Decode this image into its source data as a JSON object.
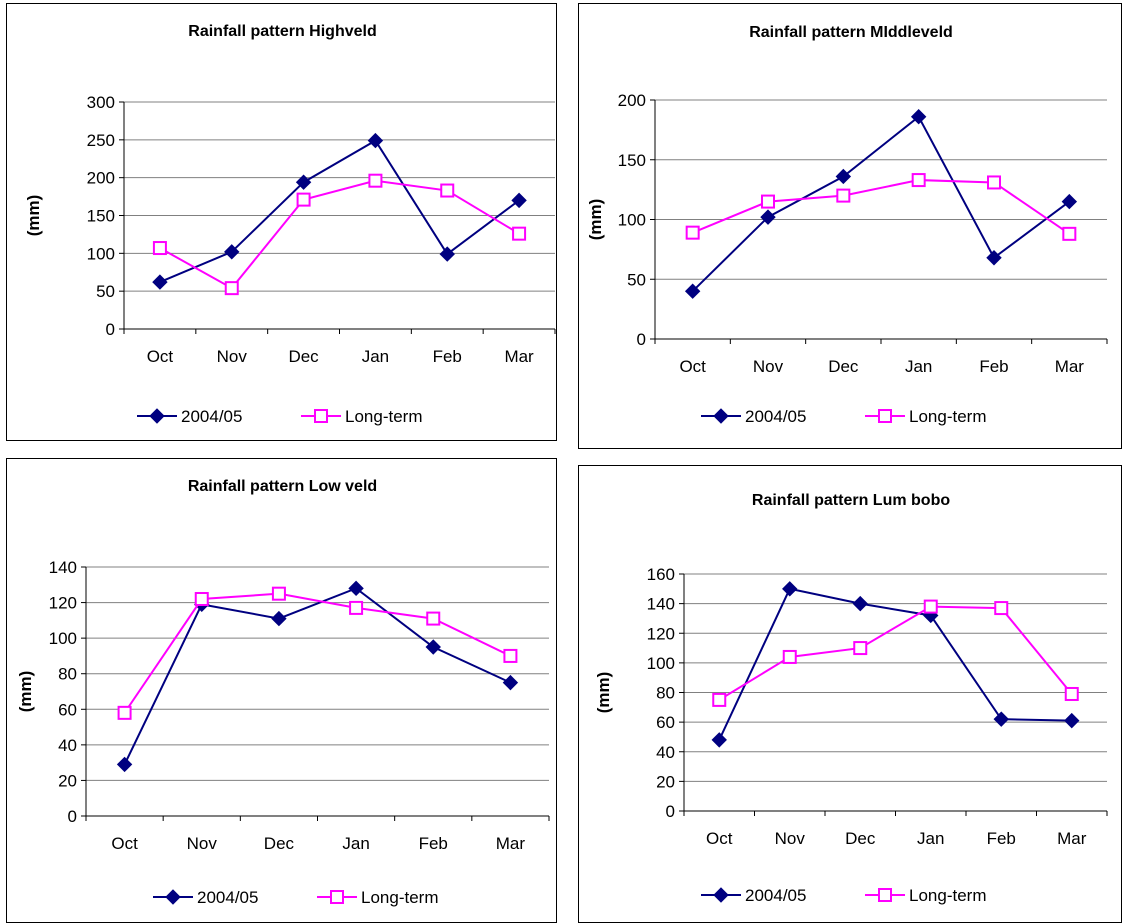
{
  "colors": {
    "series_2004_05": "#000080",
    "series_long_term": "#ff00ff",
    "grid": "#808080",
    "axis": "#000000"
  },
  "chart_data": [
    {
      "type": "line",
      "title": "Rainfall pattern Highveld",
      "ylabel": "(mm)",
      "xlabel": "",
      "categories": [
        "Oct",
        "Nov",
        "Dec",
        "Jan",
        "Feb",
        "Mar"
      ],
      "ylim": [
        0,
        300
      ],
      "yticks": [
        0,
        50,
        100,
        150,
        200,
        250,
        300
      ],
      "grid": true,
      "legend": "bottom",
      "series": [
        {
          "name": "2004/05",
          "values": [
            62,
            102,
            194,
            249,
            99,
            170
          ],
          "marker": "diamond"
        },
        {
          "name": "Long-term",
          "values": [
            107,
            54,
            171,
            196,
            183,
            126
          ],
          "marker": "square"
        }
      ]
    },
    {
      "type": "line",
      "title": "Rainfall pattern MIddleveld",
      "ylabel": "(mm)",
      "xlabel": "",
      "categories": [
        "Oct",
        "Nov",
        "Dec",
        "Jan",
        "Feb",
        "Mar"
      ],
      "ylim": [
        0,
        200
      ],
      "yticks": [
        0,
        50,
        100,
        150,
        200
      ],
      "grid": true,
      "legend": "bottom",
      "series": [
        {
          "name": "2004/05",
          "values": [
            40,
            102,
            136,
            186,
            68,
            115
          ],
          "marker": "diamond"
        },
        {
          "name": "Long-term",
          "values": [
            89,
            115,
            120,
            133,
            131,
            88
          ],
          "marker": "square"
        }
      ]
    },
    {
      "type": "line",
      "title": "Rainfall pattern Low veld",
      "ylabel": "(mm)",
      "xlabel": "",
      "categories": [
        "Oct",
        "Nov",
        "Dec",
        "Jan",
        "Feb",
        "Mar"
      ],
      "ylim": [
        0,
        140
      ],
      "yticks": [
        0,
        20,
        40,
        60,
        80,
        100,
        120,
        140
      ],
      "grid": true,
      "legend": "bottom",
      "series": [
        {
          "name": "2004/05",
          "values": [
            29,
            119,
            111,
            128,
            95,
            75
          ],
          "marker": "diamond"
        },
        {
          "name": "Long-term",
          "values": [
            58,
            122,
            125,
            117,
            111,
            90
          ],
          "marker": "square"
        }
      ]
    },
    {
      "type": "line",
      "title": "Rainfall pattern Lum bobo",
      "ylabel": "(mm)",
      "xlabel": "",
      "categories": [
        "Oct",
        "Nov",
        "Dec",
        "Jan",
        "Feb",
        "Mar"
      ],
      "ylim": [
        0,
        160
      ],
      "yticks": [
        0,
        20,
        40,
        60,
        80,
        100,
        120,
        140,
        160
      ],
      "grid": true,
      "legend": "bottom",
      "series": [
        {
          "name": "2004/05",
          "values": [
            48,
            150,
            140,
            132,
            62,
            61
          ],
          "marker": "diamond"
        },
        {
          "name": "Long-term",
          "values": [
            75,
            104,
            110,
            138,
            137,
            79
          ],
          "marker": "square"
        }
      ]
    }
  ]
}
